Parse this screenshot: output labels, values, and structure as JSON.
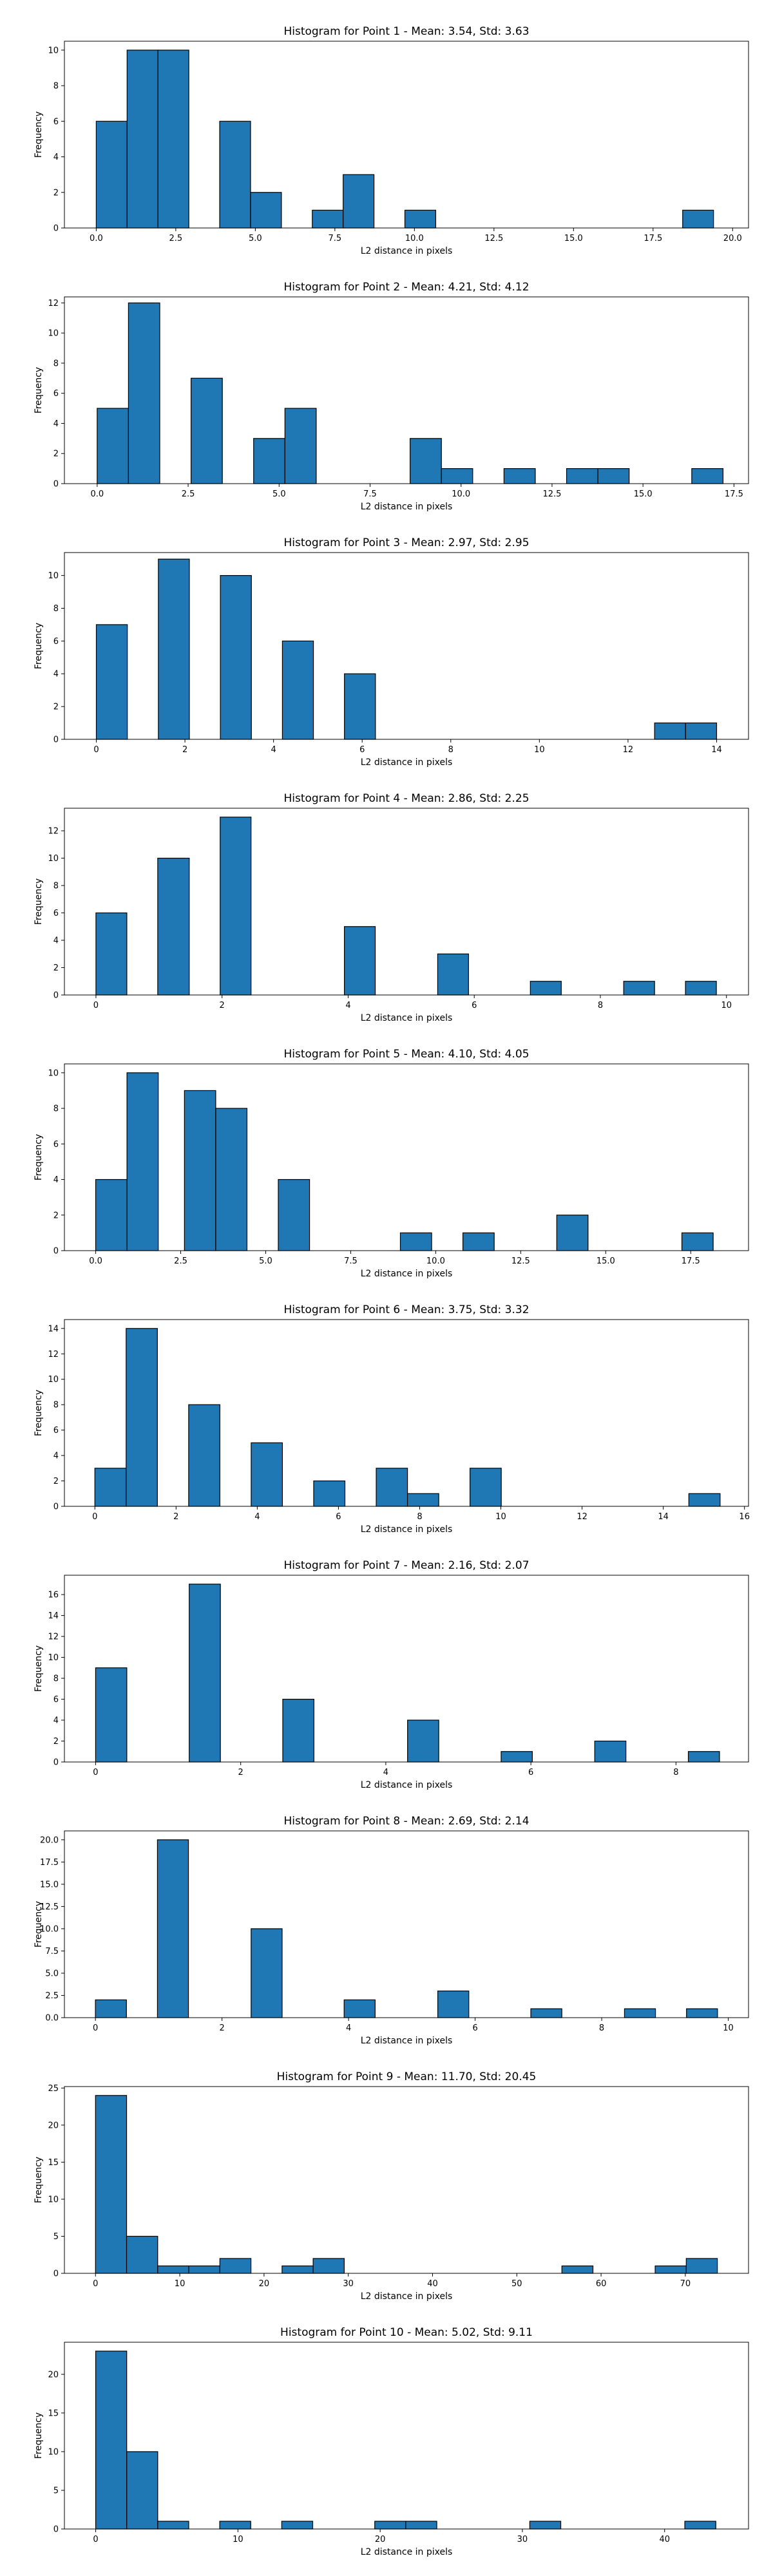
{
  "chart_data": [
    {
      "type": "bar",
      "title": "Histogram for Point 1 - Mean: 3.54, Std: 3.63",
      "xlabel": "L2 distance in pixels",
      "ylabel": "Frequency",
      "xlim": [
        -1.0,
        20.5
      ],
      "ylim": [
        0,
        10.5
      ],
      "xticks": [
        0,
        2.5,
        5,
        7.5,
        10,
        12.5,
        15,
        17.5,
        20
      ],
      "xtick_labels": [
        "0.0",
        "2.5",
        "5.0",
        "7.5",
        "10.0",
        "12.5",
        "15.0",
        "17.5",
        "20.0"
      ],
      "yticks": [
        0,
        2,
        4,
        6,
        8,
        10
      ],
      "ytick_labels": [
        "0",
        "2",
        "4",
        "6",
        "8",
        "10"
      ],
      "bar_color": "#1f77b4",
      "edge_color": "#000000",
      "bins": [
        [
          0.0,
          0.97,
          6
        ],
        [
          0.97,
          1.94,
          10
        ],
        [
          1.94,
          2.91,
          10
        ],
        [
          3.88,
          4.85,
          6
        ],
        [
          4.85,
          5.82,
          2
        ],
        [
          6.79,
          7.76,
          1
        ],
        [
          7.76,
          8.73,
          3
        ],
        [
          9.7,
          10.67,
          1
        ],
        [
          18.43,
          19.4,
          1
        ]
      ]
    },
    {
      "type": "bar",
      "title": "Histogram for Point 2 - Mean: 4.21, Std: 4.12",
      "xlabel": "L2 distance in pixels",
      "ylabel": "Frequency",
      "xlim": [
        -0.9,
        17.9
      ],
      "ylim": [
        0,
        12.4
      ],
      "xticks": [
        0,
        2.5,
        5,
        7.5,
        10,
        12.5,
        15,
        17.5
      ],
      "xtick_labels": [
        "0.0",
        "2.5",
        "5.0",
        "7.5",
        "10.0",
        "12.5",
        "15.0",
        "17.5"
      ],
      "yticks": [
        0,
        2,
        4,
        6,
        8,
        10,
        12
      ],
      "ytick_labels": [
        "0",
        "2",
        "4",
        "6",
        "8",
        "10",
        "12"
      ],
      "bar_color": "#1f77b4",
      "edge_color": "#000000",
      "bins": [
        [
          0.0,
          0.86,
          5
        ],
        [
          0.86,
          1.72,
          12
        ],
        [
          2.58,
          3.44,
          7
        ],
        [
          4.3,
          5.16,
          3
        ],
        [
          5.16,
          6.02,
          5
        ],
        [
          8.6,
          9.46,
          3
        ],
        [
          9.46,
          10.32,
          1
        ],
        [
          11.18,
          12.04,
          1
        ],
        [
          12.9,
          13.76,
          1
        ],
        [
          13.76,
          14.62,
          1
        ],
        [
          16.34,
          17.2,
          1
        ]
      ]
    },
    {
      "type": "bar",
      "title": "Histogram for Point 3 - Mean: 2.97, Std: 2.95",
      "xlabel": "L2 distance in pixels",
      "ylabel": "Frequency",
      "xlim": [
        -0.72,
        14.72
      ],
      "ylim": [
        0,
        11.4
      ],
      "xticks": [
        0,
        2,
        4,
        6,
        8,
        10,
        12,
        14
      ],
      "xtick_labels": [
        "0",
        "2",
        "4",
        "6",
        "8",
        "10",
        "12",
        "14"
      ],
      "yticks": [
        0,
        2,
        4,
        6,
        8,
        10
      ],
      "ytick_labels": [
        "0",
        "2",
        "4",
        "6",
        "8",
        "10"
      ],
      "bar_color": "#1f77b4",
      "edge_color": "#000000",
      "bins": [
        [
          0.0,
          0.7,
          7
        ],
        [
          1.4,
          2.1,
          11
        ],
        [
          2.8,
          3.5,
          10
        ],
        [
          4.2,
          4.9,
          6
        ],
        [
          5.6,
          6.3,
          4
        ],
        [
          12.6,
          13.3,
          1
        ],
        [
          13.3,
          14.0,
          1
        ]
      ]
    },
    {
      "type": "bar",
      "title": "Histogram for Point 4 - Mean: 2.86, Std: 2.25",
      "xlabel": "L2 distance in pixels",
      "ylabel": "Frequency",
      "xlim": [
        -0.5,
        10.35
      ],
      "ylim": [
        0,
        13.65
      ],
      "xticks": [
        0,
        2,
        4,
        6,
        8,
        10
      ],
      "xtick_labels": [
        "0",
        "2",
        "4",
        "6",
        "8",
        "10"
      ],
      "yticks": [
        0,
        2,
        4,
        6,
        8,
        10,
        12
      ],
      "ytick_labels": [
        "0",
        "2",
        "4",
        "6",
        "8",
        "10",
        "12"
      ],
      "bar_color": "#1f77b4",
      "edge_color": "#000000",
      "bins": [
        [
          0.0,
          0.49,
          6
        ],
        [
          0.98,
          1.48,
          10
        ],
        [
          1.97,
          2.46,
          13
        ],
        [
          3.94,
          4.43,
          5
        ],
        [
          5.42,
          5.91,
          3
        ],
        [
          6.89,
          7.38,
          1
        ],
        [
          8.37,
          8.86,
          1
        ],
        [
          9.35,
          9.84,
          1
        ]
      ]
    },
    {
      "type": "bar",
      "title": "Histogram for Point 5 - Mean: 4.10, Std: 4.05",
      "xlabel": "L2 distance in pixels",
      "ylabel": "Frequency",
      "xlim": [
        -0.92,
        19.2
      ],
      "ylim": [
        0,
        10.5
      ],
      "xticks": [
        0,
        2.5,
        5,
        7.5,
        10,
        12.5,
        15,
        17.5
      ],
      "xtick_labels": [
        "0.0",
        "2.5",
        "5.0",
        "7.5",
        "10.0",
        "12.5",
        "15.0",
        "17.5"
      ],
      "yticks": [
        0,
        2,
        4,
        6,
        8,
        10
      ],
      "ytick_labels": [
        "0",
        "2",
        "4",
        "6",
        "8",
        "10"
      ],
      "bar_color": "#1f77b4",
      "edge_color": "#000000",
      "bins": [
        [
          0.0,
          0.92,
          4
        ],
        [
          0.92,
          1.84,
          10
        ],
        [
          2.61,
          3.53,
          9
        ],
        [
          3.53,
          4.45,
          8
        ],
        [
          5.37,
          6.29,
          4
        ],
        [
          8.96,
          9.88,
          1
        ],
        [
          10.8,
          11.72,
          1
        ],
        [
          13.56,
          14.48,
          2
        ],
        [
          17.24,
          18.16,
          1
        ]
      ]
    },
    {
      "type": "bar",
      "title": "Histogram for Point 6 - Mean: 3.75, Std: 3.32",
      "xlabel": "L2 distance in pixels",
      "ylabel": "Frequency",
      "xlim": [
        -0.75,
        16.1
      ],
      "ylim": [
        0,
        14.7
      ],
      "xticks": [
        0,
        2,
        4,
        6,
        8,
        10,
        12,
        14,
        16
      ],
      "xtick_labels": [
        "0",
        "2",
        "4",
        "6",
        "8",
        "10",
        "12",
        "14",
        "16"
      ],
      "yticks": [
        0,
        2,
        4,
        6,
        8,
        10,
        12,
        14
      ],
      "ytick_labels": [
        "0",
        "2",
        "4",
        "6",
        "8",
        "10",
        "12",
        "14"
      ],
      "bar_color": "#1f77b4",
      "edge_color": "#000000",
      "bins": [
        [
          0.0,
          0.77,
          3
        ],
        [
          0.77,
          1.54,
          14
        ],
        [
          2.31,
          3.08,
          8
        ],
        [
          3.85,
          4.62,
          5
        ],
        [
          5.39,
          6.16,
          2
        ],
        [
          6.93,
          7.7,
          3
        ],
        [
          7.7,
          8.47,
          1
        ],
        [
          9.24,
          10.01,
          3
        ],
        [
          14.63,
          15.4,
          1
        ]
      ]
    },
    {
      "type": "bar",
      "title": "Histogram for Point 7 - Mean: 2.16, Std: 2.07",
      "xlabel": "L2 distance in pixels",
      "ylabel": "Frequency",
      "xlim": [
        -0.43,
        9.0
      ],
      "ylim": [
        0,
        17.85
      ],
      "xticks": [
        0,
        2,
        4,
        6,
        8
      ],
      "xtick_labels": [
        "0",
        "2",
        "4",
        "6",
        "8"
      ],
      "yticks": [
        0,
        2,
        4,
        6,
        8,
        10,
        12,
        14,
        16
      ],
      "ytick_labels": [
        "0",
        "2",
        "4",
        "6",
        "8",
        "10",
        "12",
        "14",
        "16"
      ],
      "bar_color": "#1f77b4",
      "edge_color": "#000000",
      "bins": [
        [
          0.0,
          0.43,
          9
        ],
        [
          1.29,
          1.72,
          17
        ],
        [
          2.58,
          3.01,
          6
        ],
        [
          4.3,
          4.73,
          4
        ],
        [
          5.59,
          6.02,
          1
        ],
        [
          6.88,
          7.31,
          2
        ],
        [
          8.17,
          8.6,
          1
        ]
      ]
    },
    {
      "type": "bar",
      "title": "Histogram for Point 8 - Mean: 2.69, Std: 2.14",
      "xlabel": "L2 distance in pixels",
      "ylabel": "Frequency",
      "xlim": [
        -0.49,
        10.32
      ],
      "ylim": [
        0,
        21.0
      ],
      "xticks": [
        0,
        2,
        4,
        6,
        8,
        10
      ],
      "xtick_labels": [
        "0",
        "2",
        "4",
        "6",
        "8",
        "10"
      ],
      "yticks": [
        0,
        2.5,
        5,
        7.5,
        10,
        12.5,
        15,
        17.5,
        20
      ],
      "ytick_labels": [
        "0.0",
        "2.5",
        "5.0",
        "7.5",
        "10.0",
        "12.5",
        "15.0",
        "17.5",
        "20.0"
      ],
      "bar_color": "#1f77b4",
      "edge_color": "#000000",
      "bins": [
        [
          0.0,
          0.49,
          2
        ],
        [
          0.98,
          1.47,
          20
        ],
        [
          2.46,
          2.95,
          10
        ],
        [
          3.93,
          4.42,
          2
        ],
        [
          5.41,
          5.9,
          3
        ],
        [
          6.88,
          7.37,
          1
        ],
        [
          8.36,
          8.85,
          1
        ],
        [
          9.34,
          9.83,
          1
        ]
      ]
    },
    {
      "type": "bar",
      "title": "Histogram for Point 9 - Mean: 11.70, Std: 20.45",
      "xlabel": "L2 distance in pixels",
      "ylabel": "Frequency",
      "xlim": [
        -3.69,
        77.5
      ],
      "ylim": [
        0,
        25.2
      ],
      "xticks": [
        0,
        10,
        20,
        30,
        40,
        50,
        60,
        70
      ],
      "xtick_labels": [
        "0",
        "10",
        "20",
        "30",
        "40",
        "50",
        "60",
        "70"
      ],
      "yticks": [
        0,
        5,
        10,
        15,
        20,
        25
      ],
      "ytick_labels": [
        "0",
        "5",
        "10",
        "15",
        "20",
        "25"
      ],
      "bar_color": "#1f77b4",
      "edge_color": "#000000",
      "bins": [
        [
          0.0,
          3.69,
          24
        ],
        [
          3.69,
          7.38,
          5
        ],
        [
          7.38,
          11.07,
          1
        ],
        [
          11.07,
          14.76,
          1
        ],
        [
          14.76,
          18.45,
          2
        ],
        [
          22.14,
          25.83,
          1
        ],
        [
          25.83,
          29.52,
          2
        ],
        [
          55.35,
          59.04,
          1
        ],
        [
          66.42,
          70.11,
          1
        ],
        [
          70.11,
          73.8,
          2
        ]
      ]
    },
    {
      "type": "bar",
      "title": "Histogram for Point 10 - Mean: 5.02, Std: 9.11",
      "xlabel": "L2 distance in pixels",
      "ylabel": "Frequency",
      "xlim": [
        -2.2,
        45.9
      ],
      "ylim": [
        0,
        24.15
      ],
      "xticks": [
        0,
        10,
        20,
        30,
        40
      ],
      "xtick_labels": [
        "0",
        "10",
        "20",
        "30",
        "40"
      ],
      "yticks": [
        0,
        5,
        10,
        15,
        20
      ],
      "ytick_labels": [
        "0",
        "5",
        "10",
        "15",
        "20"
      ],
      "bar_color": "#1f77b4",
      "edge_color": "#000000",
      "bins": [
        [
          0.0,
          2.18,
          23
        ],
        [
          2.18,
          4.36,
          10
        ],
        [
          4.36,
          6.54,
          1
        ],
        [
          8.72,
          10.9,
          1
        ],
        [
          13.08,
          15.26,
          1
        ],
        [
          19.62,
          21.8,
          1
        ],
        [
          21.8,
          23.98,
          1
        ],
        [
          30.52,
          32.7,
          1
        ],
        [
          41.42,
          43.6,
          1
        ]
      ]
    }
  ]
}
